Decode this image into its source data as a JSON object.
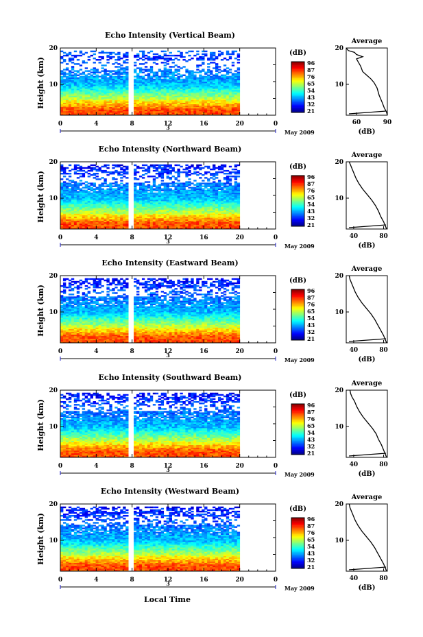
{
  "figure": {
    "date_label": "May 2009",
    "day_label": "3",
    "xlabel_bottom": "Local Time"
  },
  "chart_data": [
    {
      "type": "heatmap",
      "title": "Echo Intensity (Vertical Beam)",
      "ylabel": "Height (km)",
      "x_ticks": [
        "0",
        "4",
        "8",
        "12",
        "16",
        "20",
        "0"
      ],
      "xlim": [
        0,
        24
      ],
      "y_ticks": [
        "10",
        "20"
      ],
      "ylim": [
        1.5,
        20
      ],
      "data_end_hour": 20,
      "gap_hour": 8,
      "colorbar": {
        "label": "(dB)",
        "ticks": [
          "96",
          "87",
          "76",
          "65",
          "54",
          "43",
          "32",
          "21"
        ]
      },
      "profile": {
        "title": "Average",
        "xlabel": "(dB)",
        "x_ticks": [
          "60",
          "90"
        ],
        "xlim": [
          50,
          90
        ],
        "y_ticks": [
          "10",
          "20"
        ],
        "heights": [
          1.5,
          2.5,
          3.5,
          5,
          7,
          9,
          10.5,
          11.5,
          12.5,
          13.5,
          15,
          16,
          17,
          17.6,
          18.2,
          18.8,
          19.3,
          20
        ],
        "values": [
          90,
          89,
          87,
          85,
          82,
          80,
          77,
          74,
          70,
          66,
          64,
          62,
          60,
          66,
          60,
          58,
          52,
          50
        ]
      }
    },
    {
      "type": "heatmap",
      "title": "Echo Intensity (Northward Beam)",
      "ylabel": "Height (km)",
      "x_ticks": [
        "0",
        "4",
        "8",
        "12",
        "16",
        "20",
        "0"
      ],
      "xlim": [
        0,
        24
      ],
      "y_ticks": [
        "10",
        "20"
      ],
      "ylim": [
        1.5,
        20
      ],
      "data_end_hour": 20,
      "gap_hour": 8,
      "colorbar": {
        "label": "(dB)",
        "ticks": [
          "96",
          "87",
          "76",
          "65",
          "54",
          "43",
          "32",
          "21"
        ]
      },
      "profile": {
        "title": "Average",
        "xlabel": "(dB)",
        "x_ticks": [
          "40",
          "80"
        ],
        "xlim": [
          30,
          85
        ],
        "y_ticks": [
          "10",
          "20"
        ],
        "heights": [
          1.5,
          2.5,
          3.5,
          5,
          6.5,
          8,
          9.5,
          11,
          12.5,
          14,
          15.5,
          17,
          18,
          19,
          20
        ],
        "values": [
          84,
          82,
          80,
          76,
          73,
          69,
          64,
          58,
          52,
          47,
          43,
          40,
          38,
          36,
          34
        ]
      }
    },
    {
      "type": "heatmap",
      "title": "Echo Intensity (Eastward Beam)",
      "ylabel": "Height (km)",
      "x_ticks": [
        "0",
        "4",
        "8",
        "12",
        "16",
        "20",
        "0"
      ],
      "xlim": [
        0,
        24
      ],
      "y_ticks": [
        "10",
        "20"
      ],
      "ylim": [
        1.5,
        20
      ],
      "data_end_hour": 20,
      "gap_hour": 8,
      "colorbar": {
        "label": "(dB)",
        "ticks": [
          "96",
          "87",
          "76",
          "65",
          "54",
          "43",
          "32",
          "21"
        ]
      },
      "profile": {
        "title": "Average",
        "xlabel": "(dB)",
        "x_ticks": [
          "40",
          "80"
        ],
        "xlim": [
          30,
          85
        ],
        "y_ticks": [
          "10",
          "20"
        ],
        "heights": [
          1.5,
          2.5,
          3.5,
          5,
          6.5,
          8,
          9.5,
          11,
          12.5,
          14,
          15.5,
          17,
          18,
          19,
          20
        ],
        "values": [
          84,
          82,
          80,
          76,
          72,
          68,
          63,
          57,
          51,
          46,
          42,
          39,
          37,
          35,
          34
        ]
      }
    },
    {
      "type": "heatmap",
      "title": "Echo Intensity (Southward Beam)",
      "ylabel": "Height (km)",
      "x_ticks": [
        "0",
        "4",
        "8",
        "12",
        "16",
        "20",
        "0"
      ],
      "xlim": [
        0,
        24
      ],
      "y_ticks": [
        "10",
        "20"
      ],
      "ylim": [
        1.5,
        20
      ],
      "data_end_hour": 20,
      "gap_hour": 8,
      "colorbar": {
        "label": "(dB)",
        "ticks": [
          "96",
          "87",
          "76",
          "65",
          "54",
          "43",
          "32",
          "21"
        ]
      },
      "profile": {
        "title": "Average",
        "xlabel": "(dB)",
        "x_ticks": [
          "40",
          "80"
        ],
        "xlim": [
          30,
          85
        ],
        "y_ticks": [
          "10",
          "20"
        ],
        "heights": [
          1.5,
          2.5,
          3.5,
          5,
          6.5,
          8,
          9.5,
          11,
          12.5,
          14,
          15.5,
          17,
          18,
          19,
          20
        ],
        "values": [
          84,
          82,
          80,
          77,
          73,
          70,
          65,
          59,
          53,
          48,
          44,
          41,
          38,
          36,
          35
        ]
      }
    },
    {
      "type": "heatmap",
      "title": "Echo Intensity (Westward Beam)",
      "ylabel": "Height (km)",
      "x_ticks": [
        "0",
        "4",
        "8",
        "12",
        "16",
        "20",
        "0"
      ],
      "xlim": [
        0,
        24
      ],
      "y_ticks": [
        "10",
        "20"
      ],
      "ylim": [
        1.5,
        20
      ],
      "data_end_hour": 20,
      "gap_hour": 8,
      "colorbar": {
        "label": "(dB)",
        "ticks": [
          "96",
          "87",
          "76",
          "65",
          "54",
          "43",
          "32",
          "21"
        ]
      },
      "profile": {
        "title": "Average",
        "xlabel": "(dB)",
        "x_ticks": [
          "40",
          "80"
        ],
        "xlim": [
          30,
          85
        ],
        "y_ticks": [
          "10",
          "20"
        ],
        "heights": [
          1.5,
          2.5,
          3.5,
          5,
          6.5,
          8,
          9.5,
          11,
          12.5,
          14,
          15.5,
          17,
          18,
          19,
          20
        ],
        "values": [
          84,
          82,
          80,
          76,
          72,
          68,
          63,
          57,
          51,
          46,
          42,
          39,
          37,
          35,
          34
        ]
      }
    }
  ]
}
